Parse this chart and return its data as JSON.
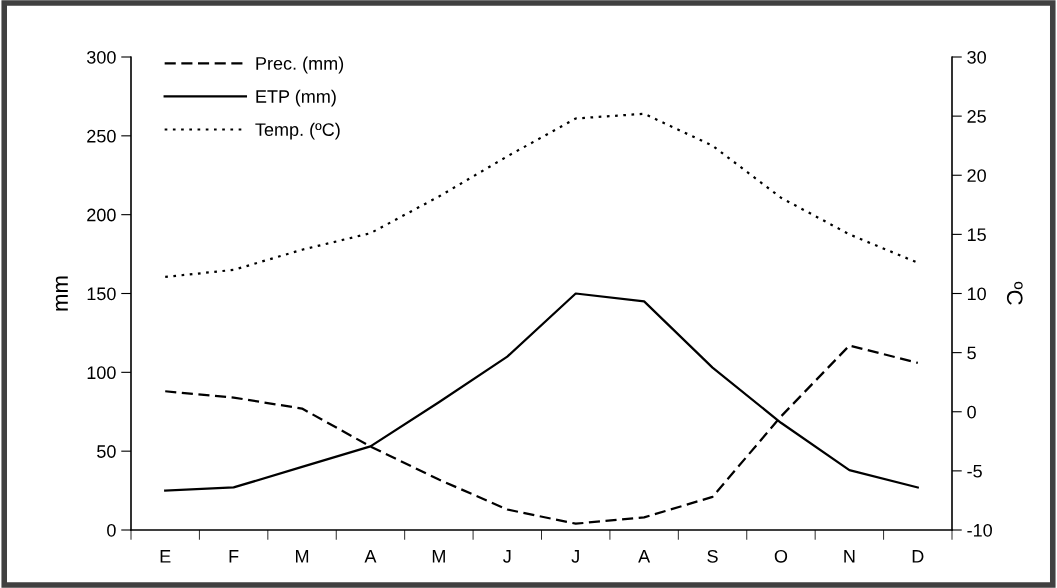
{
  "chart_data": {
    "type": "line",
    "ylabel": "mm",
    "y2label": "ºC",
    "categories": [
      "E",
      "F",
      "M",
      "A",
      "M",
      "J",
      "J",
      "A",
      "S",
      "O",
      "N",
      "D"
    ],
    "series": [
      {
        "name": "Prec. (mm)",
        "color": "#000000",
        "line_style": "dashed",
        "values": [
          88,
          84,
          77,
          53,
          32,
          13,
          4,
          8,
          21,
          72,
          117,
          106
        ]
      },
      {
        "name": "ETP (mm)",
        "color": "#000000",
        "line_style": "solid",
        "values": [
          25,
          27,
          40,
          53,
          81,
          110,
          150,
          145,
          103,
          68,
          38,
          27
        ]
      },
      {
        "name": "Temp. (ºC)",
        "color": "#000000",
        "line_style": "dotted",
        "axis": "y2",
        "values": [
          11.4,
          12.0,
          13.7,
          15.1,
          18.2,
          21.6,
          24.8,
          25.2,
          22.5,
          18.1,
          15.0,
          12.6
        ]
      }
    ],
    "ylim": [
      0,
      300
    ],
    "yticks": [
      0,
      50,
      100,
      150,
      200,
      250,
      300
    ],
    "y2lim": [
      -10,
      30
    ],
    "y2ticks": [
      -10,
      -5,
      0,
      5,
      10,
      15,
      20,
      25,
      30
    ],
    "legend": "top left",
    "grid": false,
    "marker": "none"
  }
}
